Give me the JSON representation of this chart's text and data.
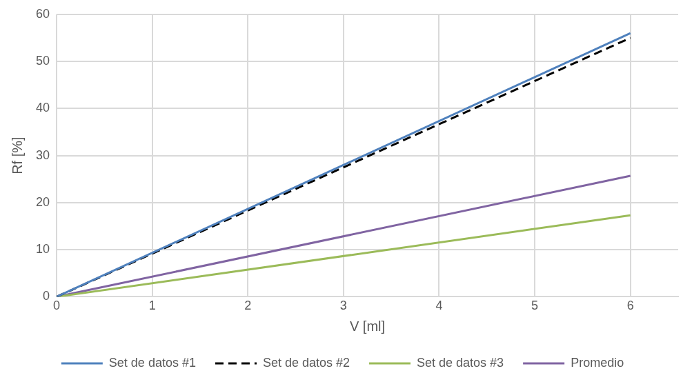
{
  "chart_data": {
    "type": "line",
    "xlabel": "V [ml]",
    "ylabel": "Rf [%]",
    "x": [
      0,
      6
    ],
    "xlim": [
      0,
      6.5
    ],
    "xticks": [
      0,
      1,
      2,
      3,
      4,
      5,
      6
    ],
    "ylim": [
      0,
      60
    ],
    "yticks": [
      0,
      10,
      20,
      30,
      40,
      50,
      60
    ],
    "grid": true,
    "legend": "bottom",
    "marker": "none",
    "series": [
      {
        "name": "Set de datos #1",
        "color": "#4f81bd",
        "values": [
          0,
          56
        ],
        "line_style": "solid"
      },
      {
        "name": "Set de datos #2",
        "color": "#000000",
        "values": [
          0,
          55
        ],
        "line_style": "dashed"
      },
      {
        "name": "Set de datos #3",
        "color": "#9bbb59",
        "values": [
          0,
          17.3
        ],
        "line_style": "solid"
      },
      {
        "name": "Promedio",
        "color": "#8064a2",
        "values": [
          0,
          25.7
        ],
        "line_style": "solid"
      }
    ]
  }
}
